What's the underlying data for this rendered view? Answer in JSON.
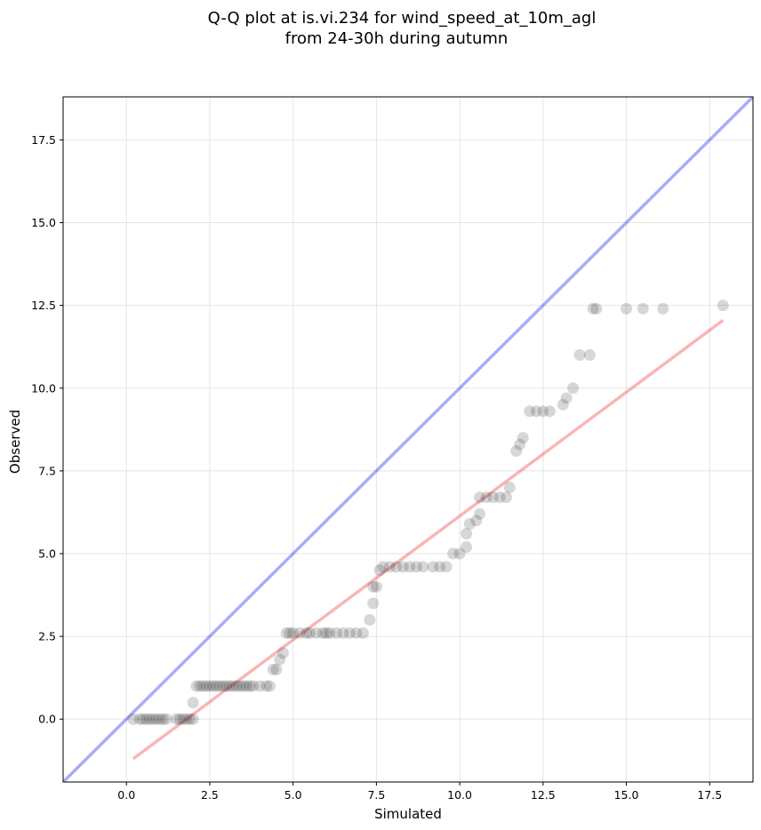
{
  "chart_data": {
    "type": "scatter",
    "title_lines": [
      "Q-Q plot at is.vi.234 for wind_speed_at_10m_agl",
      "from 24-30h during autumn"
    ],
    "xlabel": "Simulated",
    "ylabel": "Observed",
    "xlim": [
      -1.9,
      18.8
    ],
    "ylim": [
      -1.9,
      18.8
    ],
    "xticks": [
      0.0,
      2.5,
      5.0,
      7.5,
      10.0,
      12.5,
      15.0,
      17.5
    ],
    "xtick_labels": [
      "0.0",
      "2.5",
      "5.0",
      "7.5",
      "10.0",
      "12.5",
      "15.0",
      "17.5"
    ],
    "yticks": [
      0.0,
      2.5,
      5.0,
      7.5,
      10.0,
      12.5,
      15.0,
      17.5
    ],
    "ytick_labels": [
      "0.0",
      "2.5",
      "5.0",
      "7.5",
      "10.0",
      "12.5",
      "15.0",
      "17.5"
    ],
    "grid": true,
    "identity_line": {
      "color": "#0000ee",
      "points": [
        [
          -1.9,
          -1.9
        ],
        [
          18.8,
          18.8
        ]
      ]
    },
    "fit_line": {
      "color": "#ee2222",
      "points": [
        [
          0.2,
          -1.2
        ],
        [
          17.9,
          12.05
        ]
      ]
    },
    "point_color": "#222222",
    "points": [
      [
        0.2,
        0.0
      ],
      [
        0.4,
        0.0
      ],
      [
        0.5,
        0.0
      ],
      [
        0.6,
        0.0
      ],
      [
        0.7,
        0.0
      ],
      [
        0.8,
        0.0
      ],
      [
        0.9,
        0.0
      ],
      [
        1.0,
        0.0
      ],
      [
        1.1,
        0.0
      ],
      [
        1.2,
        0.0
      ],
      [
        1.5,
        0.0
      ],
      [
        1.6,
        0.0
      ],
      [
        1.7,
        0.0
      ],
      [
        1.8,
        0.0
      ],
      [
        1.9,
        0.0
      ],
      [
        2.0,
        0.0
      ],
      [
        2.0,
        0.5
      ],
      [
        2.1,
        1.0
      ],
      [
        2.2,
        1.0
      ],
      [
        2.3,
        1.0
      ],
      [
        2.4,
        1.0
      ],
      [
        2.5,
        1.0
      ],
      [
        2.6,
        1.0
      ],
      [
        2.7,
        1.0
      ],
      [
        2.8,
        1.0
      ],
      [
        2.9,
        1.0
      ],
      [
        3.0,
        1.0
      ],
      [
        3.1,
        1.0
      ],
      [
        3.2,
        1.0
      ],
      [
        3.3,
        1.0
      ],
      [
        3.4,
        1.0
      ],
      [
        3.5,
        1.0
      ],
      [
        3.6,
        1.0
      ],
      [
        3.7,
        1.0
      ],
      [
        3.8,
        1.0
      ],
      [
        4.0,
        1.0
      ],
      [
        4.2,
        1.0
      ],
      [
        4.3,
        1.0
      ],
      [
        4.4,
        1.5
      ],
      [
        4.5,
        1.5
      ],
      [
        4.6,
        1.8
      ],
      [
        4.7,
        2.0
      ],
      [
        4.8,
        2.6
      ],
      [
        4.9,
        2.6
      ],
      [
        5.0,
        2.6
      ],
      [
        5.2,
        2.6
      ],
      [
        5.4,
        2.6
      ],
      [
        5.5,
        2.6
      ],
      [
        5.7,
        2.6
      ],
      [
        5.9,
        2.6
      ],
      [
        6.0,
        2.6
      ],
      [
        6.1,
        2.6
      ],
      [
        6.3,
        2.6
      ],
      [
        6.5,
        2.6
      ],
      [
        6.7,
        2.6
      ],
      [
        6.9,
        2.6
      ],
      [
        7.1,
        2.6
      ],
      [
        7.3,
        3.0
      ],
      [
        7.4,
        3.5
      ],
      [
        7.4,
        4.0
      ],
      [
        7.5,
        4.0
      ],
      [
        7.6,
        4.5
      ],
      [
        7.7,
        4.6
      ],
      [
        7.9,
        4.6
      ],
      [
        8.1,
        4.6
      ],
      [
        8.3,
        4.6
      ],
      [
        8.5,
        4.6
      ],
      [
        8.7,
        4.6
      ],
      [
        8.9,
        4.6
      ],
      [
        9.2,
        4.6
      ],
      [
        9.4,
        4.6
      ],
      [
        9.6,
        4.6
      ],
      [
        9.8,
        5.0
      ],
      [
        10.0,
        5.0
      ],
      [
        10.2,
        5.2
      ],
      [
        10.2,
        5.6
      ],
      [
        10.3,
        5.9
      ],
      [
        10.5,
        6.0
      ],
      [
        10.6,
        6.2
      ],
      [
        10.6,
        6.7
      ],
      [
        10.8,
        6.7
      ],
      [
        11.0,
        6.7
      ],
      [
        11.2,
        6.7
      ],
      [
        11.4,
        6.7
      ],
      [
        11.5,
        7.0
      ],
      [
        11.7,
        8.1
      ],
      [
        11.8,
        8.3
      ],
      [
        11.9,
        8.5
      ],
      [
        12.1,
        9.3
      ],
      [
        12.3,
        9.3
      ],
      [
        12.5,
        9.3
      ],
      [
        12.7,
        9.3
      ],
      [
        13.1,
        9.5
      ],
      [
        13.2,
        9.7
      ],
      [
        13.4,
        10.0
      ],
      [
        13.6,
        11.0
      ],
      [
        13.9,
        11.0
      ],
      [
        14.0,
        12.4
      ],
      [
        14.1,
        12.4
      ],
      [
        15.0,
        12.4
      ],
      [
        15.5,
        12.4
      ],
      [
        16.1,
        12.4
      ],
      [
        17.9,
        12.5
      ]
    ]
  }
}
